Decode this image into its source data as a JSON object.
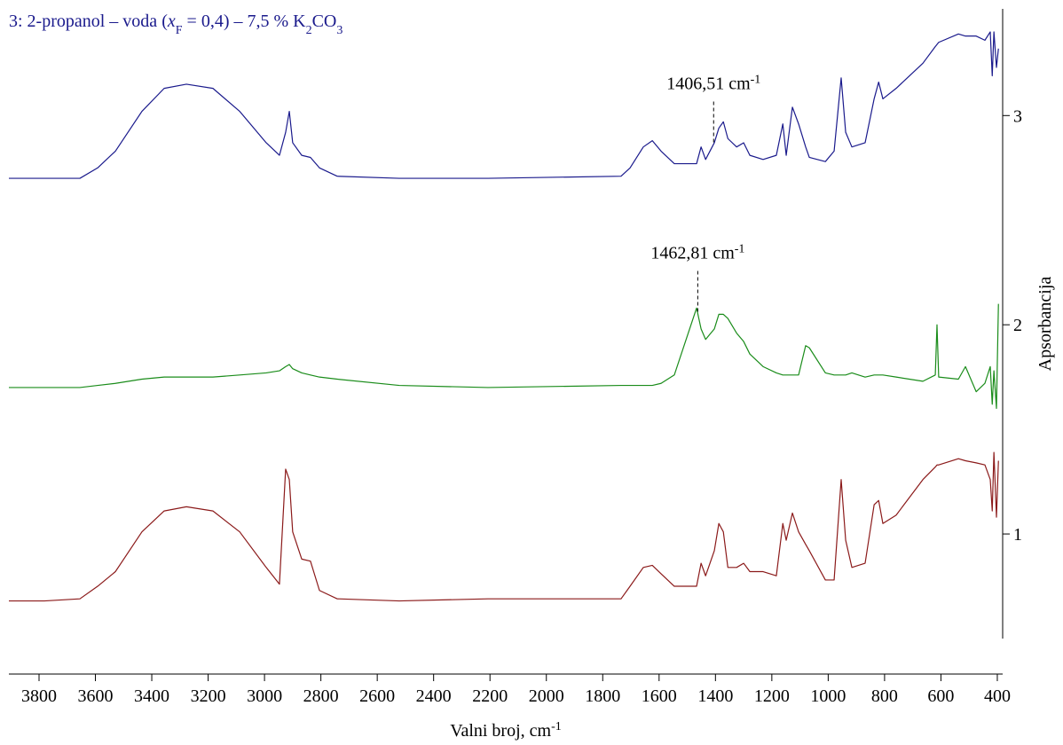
{
  "chart_data": {
    "type": "line",
    "legend_series": 2,
    "y_axis_side": "right",
    "xlabel": [
      {
        "text": "Valni broj, cm"
      },
      {
        "text": "-1",
        "style": "sup"
      }
    ],
    "ylabel": "Apsorbancija",
    "xlim": [
      3907,
      381
    ],
    "ylim": [
      0.5,
      3.51
    ],
    "xticks": [
      3800,
      3600,
      3400,
      3200,
      3000,
      2800,
      2600,
      2400,
      2200,
      2000,
      1800,
      1600,
      1400,
      1200,
      1000,
      800,
      600,
      400
    ],
    "yticks": [
      1,
      2,
      3
    ],
    "x": [
      3907,
      3781,
      3655,
      3592,
      3529,
      3435,
      3356,
      3277,
      3183,
      3088,
      2994,
      2947,
      2925,
      2912,
      2900,
      2868,
      2837,
      2805,
      2742,
      2522,
      2207,
      1735,
      1703,
      1656,
      1624,
      1593,
      1546,
      1467,
      1451,
      1435,
      1404,
      1388,
      1372,
      1356,
      1325,
      1300,
      1278,
      1231,
      1184,
      1161,
      1149,
      1127,
      1105,
      1080,
      1067,
      1010,
      979,
      954,
      938,
      916,
      869,
      837,
      821,
      806,
      759,
      664,
      620,
      614,
      608,
      538,
      513,
      475,
      444,
      425,
      418,
      412,
      403,
      396
    ],
    "series": [
      {
        "color": "#8b1a1a",
        "values": [
          0.68,
          0.68,
          0.69,
          0.75,
          0.82,
          1.01,
          1.11,
          1.13,
          1.11,
          1.01,
          0.84,
          0.76,
          1.31,
          1.26,
          1.01,
          0.88,
          0.87,
          0.73,
          0.69,
          0.68,
          0.69,
          0.69,
          0.75,
          0.84,
          0.85,
          0.81,
          0.75,
          0.75,
          0.86,
          0.8,
          0.92,
          1.05,
          1.01,
          0.84,
          0.84,
          0.86,
          0.82,
          0.82,
          0.8,
          1.05,
          0.97,
          1.1,
          1.01,
          0.95,
          0.92,
          0.78,
          0.78,
          1.26,
          0.97,
          0.84,
          0.86,
          1.14,
          1.16,
          1.05,
          1.09,
          1.26,
          1.32,
          1.33,
          1.33,
          1.36,
          1.35,
          1.34,
          1.33,
          1.26,
          1.11,
          1.39,
          1.08,
          1.35
        ]
      },
      {
        "color": "#1a8c1a",
        "values": [
          1.7,
          1.7,
          1.7,
          1.71,
          1.72,
          1.74,
          1.75,
          1.75,
          1.75,
          1.76,
          1.77,
          1.78,
          1.8,
          1.81,
          1.79,
          1.77,
          1.76,
          1.75,
          1.74,
          1.71,
          1.7,
          1.71,
          1.71,
          1.71,
          1.71,
          1.72,
          1.76,
          2.08,
          1.98,
          1.93,
          1.98,
          2.05,
          2.05,
          2.03,
          1.96,
          1.92,
          1.86,
          1.8,
          1.77,
          1.76,
          1.76,
          1.76,
          1.76,
          1.9,
          1.89,
          1.77,
          1.76,
          1.76,
          1.76,
          1.77,
          1.75,
          1.76,
          1.76,
          1.76,
          1.75,
          1.73,
          1.76,
          2.0,
          1.75,
          1.74,
          1.8,
          1.68,
          1.72,
          1.8,
          1.62,
          1.78,
          1.6,
          2.1
        ]
      },
      {
        "color": "#1a1a8c",
        "name": [
          {
            "text": "3: 2-propanol – voda ("
          },
          {
            "text": "x",
            "style": "italic"
          },
          {
            "text": "F",
            "style": "sub"
          },
          {
            "text": " = 0,4) – 7,5 % K"
          },
          {
            "text": "2",
            "style": "sub"
          },
          {
            "text": "CO"
          },
          {
            "text": "3",
            "style": "sub"
          }
        ],
        "values": [
          2.7,
          2.7,
          2.7,
          2.75,
          2.83,
          3.02,
          3.13,
          3.15,
          3.13,
          3.02,
          2.87,
          2.81,
          2.92,
          3.02,
          2.87,
          2.81,
          2.8,
          2.75,
          2.71,
          2.7,
          2.7,
          2.71,
          2.75,
          2.85,
          2.88,
          2.83,
          2.77,
          2.77,
          2.85,
          2.79,
          2.87,
          2.94,
          2.97,
          2.89,
          2.85,
          2.87,
          2.81,
          2.79,
          2.81,
          2.96,
          2.81,
          3.04,
          2.96,
          2.85,
          2.8,
          2.78,
          2.83,
          3.18,
          2.92,
          2.85,
          2.87,
          3.08,
          3.16,
          3.08,
          3.13,
          3.25,
          3.33,
          3.34,
          3.35,
          3.39,
          3.38,
          3.38,
          3.36,
          3.4,
          3.19,
          3.4,
          3.23,
          3.32
        ]
      }
    ],
    "annotations": [
      {
        "x": 1406.51,
        "series": 2,
        "label": [
          {
            "text": "1406,51 cm"
          },
          {
            "text": "-1",
            "style": "sup"
          }
        ]
      },
      {
        "x": 1462.81,
        "series": 1,
        "label": [
          {
            "text": "1462,81 cm"
          },
          {
            "text": "-1",
            "style": "sup"
          }
        ]
      }
    ]
  }
}
